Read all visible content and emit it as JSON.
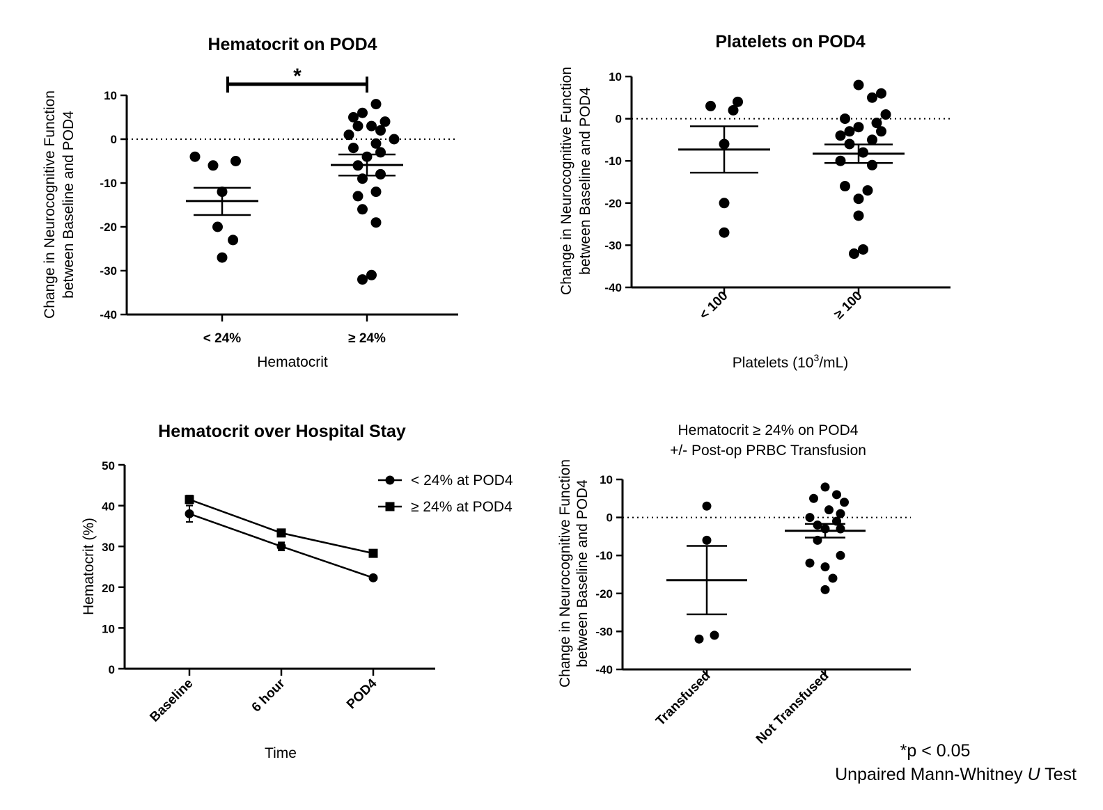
{
  "figure_note": {
    "line1": "*p < 0.05",
    "line2_prefix": "Unpaired Mann-Whitney ",
    "line2_italic": "U",
    "line2_suffix": " Test"
  },
  "chart_data": [
    {
      "id": "A",
      "type": "scatter",
      "title": "Hematocrit on POD4",
      "ylabel_lines": [
        "Change in Neurocognitive Function",
        "between Baseline and POD4"
      ],
      "xlabel": "Hematocrit",
      "categories": [
        "< 24%",
        "≥ 24%"
      ],
      "yticks": [
        10,
        0,
        -10,
        -20,
        -30,
        -40
      ],
      "ylim": [
        -40,
        10
      ],
      "reference_line": 0,
      "significance": {
        "between": [
          0,
          1
        ],
        "label": "*"
      },
      "groups": [
        {
          "points": [
            [
              -0.3,
              -4
            ],
            [
              -0.1,
              -6
            ],
            [
              0.15,
              -5
            ],
            [
              0,
              -12
            ],
            [
              -0.05,
              -20
            ],
            [
              0.12,
              -23
            ],
            [
              0,
              -27
            ]
          ],
          "mean": -14.1,
          "sem_low": -17.3,
          "sem_high": -11.1
        },
        {
          "points": [
            [
              -0.15,
              5
            ],
            [
              0.1,
              8
            ],
            [
              -0.05,
              6
            ],
            [
              0.2,
              4
            ],
            [
              -0.2,
              1
            ],
            [
              0.05,
              3
            ],
            [
              0.15,
              2
            ],
            [
              -0.1,
              3
            ],
            [
              0.3,
              0
            ],
            [
              0.1,
              -1
            ],
            [
              -0.15,
              -2
            ],
            [
              0,
              -4
            ],
            [
              0.15,
              -3
            ],
            [
              -0.1,
              -6
            ],
            [
              0.15,
              -8
            ],
            [
              -0.05,
              -9
            ],
            [
              0.1,
              -12
            ],
            [
              -0.1,
              -13
            ],
            [
              -0.05,
              -16
            ],
            [
              0.1,
              -19
            ],
            [
              -0.05,
              -32
            ],
            [
              0.05,
              -31
            ]
          ],
          "mean": -5.9,
          "sem_low": -8.3,
          "sem_high": -3.5
        }
      ]
    },
    {
      "id": "B",
      "type": "scatter",
      "title": "Platelets on POD4",
      "ylabel_lines": [
        "Change in Neurocognitive Function",
        "between Baseline and POD4"
      ],
      "xlabel_pre": "Platelets (10",
      "xlabel_sup": "3",
      "xlabel_post": "/mL)",
      "categories": [
        "< 100",
        "≥ 100"
      ],
      "yticks": [
        10,
        0,
        -10,
        -20,
        -30,
        -40
      ],
      "ylim": [
        -40,
        10
      ],
      "reference_line": 0,
      "groups": [
        {
          "points": [
            [
              -0.15,
              3
            ],
            [
              0.1,
              2
            ],
            [
              0.15,
              4
            ],
            [
              0,
              -6
            ],
            [
              0,
              -20
            ],
            [
              0,
              -27
            ]
          ],
          "mean": -7.3,
          "sem_low": -12.8,
          "sem_high": -1.8
        },
        {
          "points": [
            [
              0,
              8
            ],
            [
              0.15,
              5
            ],
            [
              0.25,
              6
            ],
            [
              -0.15,
              0
            ],
            [
              0.3,
              1
            ],
            [
              -0.2,
              -4
            ],
            [
              0,
              -2
            ],
            [
              0.2,
              -1
            ],
            [
              -0.1,
              -3
            ],
            [
              0.25,
              -3
            ],
            [
              -0.1,
              -6
            ],
            [
              0.15,
              -5
            ],
            [
              0.05,
              -8
            ],
            [
              -0.2,
              -10
            ],
            [
              0.15,
              -11
            ],
            [
              -0.15,
              -16
            ],
            [
              0.1,
              -17
            ],
            [
              0,
              -19
            ],
            [
              0,
              -23
            ],
            [
              -0.05,
              -32
            ],
            [
              0.05,
              -31
            ]
          ],
          "mean": -8.3,
          "sem_low": -10.5,
          "sem_high": -6.1
        }
      ]
    },
    {
      "id": "C",
      "type": "line",
      "title": "Hematocrit over Hospital Stay",
      "ylabel": "Hematocrit (%)",
      "xlabel": "Time",
      "categories": [
        "Baseline",
        "6 hour",
        "POD4"
      ],
      "yticks": [
        50,
        40,
        30,
        20,
        10,
        0
      ],
      "ylim": [
        0,
        50
      ],
      "series": [
        {
          "name": "< 24% at POD4",
          "marker": "circle",
          "values": [
            38,
            30,
            22.3
          ],
          "errors": [
            2,
            1,
            0.5
          ]
        },
        {
          "name": "≥ 24% at POD4",
          "marker": "square",
          "values": [
            41.5,
            33.3,
            28.3
          ],
          "errors": [
            1,
            0.5,
            0.5
          ]
        }
      ]
    },
    {
      "id": "D",
      "type": "scatter",
      "title_lines": [
        "Hematocrit ≥ 24% on POD4",
        "+/- Post-op PRBC Transfusion"
      ],
      "ylabel_lines": [
        "Change in Neurocognitive Function",
        "between Baseline and POD4"
      ],
      "categories": [
        "Transfused",
        "Not Transfused"
      ],
      "yticks": [
        10,
        0,
        -10,
        -20,
        -30,
        -40
      ],
      "ylim": [
        -40,
        10
      ],
      "reference_line": 0,
      "groups": [
        {
          "points": [
            [
              0,
              3
            ],
            [
              0,
              -6
            ],
            [
              -0.1,
              -32
            ],
            [
              0.1,
              -31
            ]
          ],
          "mean": -16.5,
          "sem_low": -25.5,
          "sem_high": -7.5
        },
        {
          "points": [
            [
              0,
              8
            ],
            [
              -0.15,
              5
            ],
            [
              0.15,
              6
            ],
            [
              0.25,
              4
            ],
            [
              0.05,
              2
            ],
            [
              -0.2,
              0
            ],
            [
              0.2,
              1
            ],
            [
              -0.1,
              -2
            ],
            [
              0,
              -3
            ],
            [
              0.15,
              -1
            ],
            [
              0.2,
              -3
            ],
            [
              -0.1,
              -6
            ],
            [
              0.2,
              -10
            ],
            [
              -0.2,
              -12
            ],
            [
              0,
              -13
            ],
            [
              0.1,
              -16
            ],
            [
              0,
              -19
            ]
          ],
          "mean": -3.5,
          "sem_low": -5.3,
          "sem_high": -1.7
        }
      ]
    }
  ]
}
